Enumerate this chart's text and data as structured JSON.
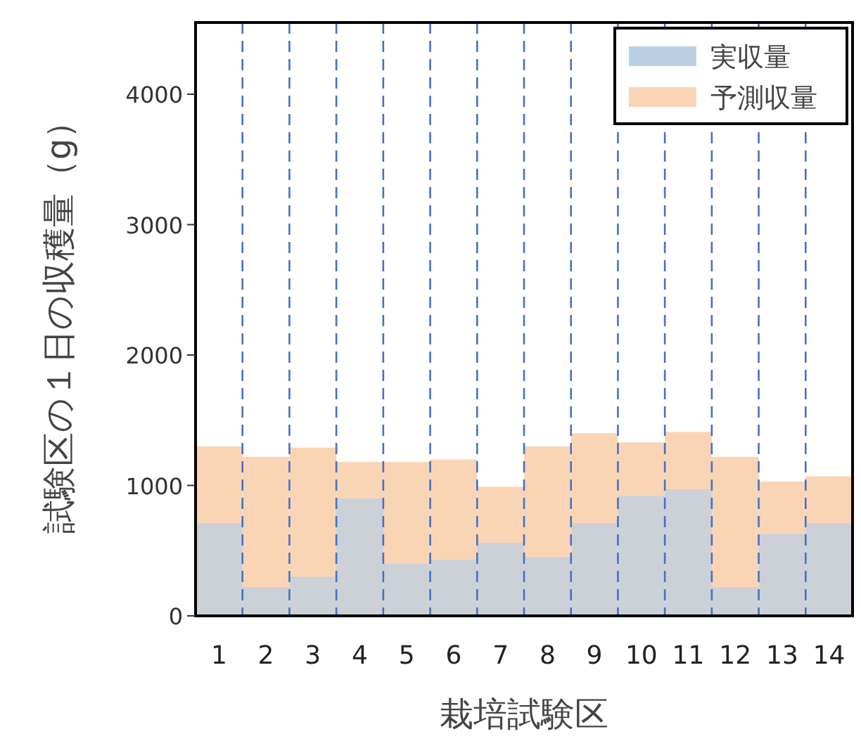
{
  "chart_data": {
    "type": "bar",
    "xlabel": "栽培試験区",
    "ylabel": "試験区の１日の収穫量（g）",
    "x": [
      1,
      2,
      3,
      4,
      5,
      6,
      7,
      8,
      9,
      10,
      11,
      12,
      13,
      14
    ],
    "xlim": [
      0.5,
      14.5
    ],
    "xticks": [
      1,
      2,
      3,
      4,
      5,
      6,
      7,
      8,
      9,
      10,
      11,
      12,
      13,
      14
    ],
    "ylim": [
      0,
      4550
    ],
    "yticks": [
      0,
      1000,
      2000,
      3000,
      4000
    ],
    "grid": false,
    "legend": "top right",
    "series": [
      {
        "name": "実収量",
        "color": "#bad0e4",
        "values": [
          710,
          220,
          300,
          900,
          400,
          430,
          560,
          450,
          710,
          920,
          970,
          220,
          630,
          710
        ]
      },
      {
        "name": "予測収量",
        "color": "#fad5b5",
        "values": [
          1300,
          1220,
          1290,
          1180,
          1180,
          1200,
          990,
          1300,
          1400,
          1330,
          1410,
          1220,
          1030,
          1070
        ]
      }
    ],
    "ref_lines": [
      {
        "axis": "x",
        "value": 1.5,
        "color": "#4472c4",
        "line_style": "dashed"
      },
      {
        "axis": "x",
        "value": 2.5,
        "color": "#4472c4",
        "line_style": "dashed"
      },
      {
        "axis": "x",
        "value": 3.5,
        "color": "#4472c4",
        "line_style": "dashed"
      },
      {
        "axis": "x",
        "value": 4.5,
        "color": "#4472c4",
        "line_style": "dashed"
      },
      {
        "axis": "x",
        "value": 5.5,
        "color": "#4472c4",
        "line_style": "dashed"
      },
      {
        "axis": "x",
        "value": 6.5,
        "color": "#4472c4",
        "line_style": "dashed"
      },
      {
        "axis": "x",
        "value": 7.5,
        "color": "#4472c4",
        "line_style": "dashed"
      },
      {
        "axis": "x",
        "value": 8.5,
        "color": "#4472c4",
        "line_style": "dashed"
      },
      {
        "axis": "x",
        "value": 9.5,
        "color": "#4472c4",
        "line_style": "dashed"
      },
      {
        "axis": "x",
        "value": 10.5,
        "color": "#4472c4",
        "line_style": "dashed"
      },
      {
        "axis": "x",
        "value": 11.5,
        "color": "#4472c4",
        "line_style": "dashed"
      },
      {
        "axis": "x",
        "value": 12.5,
        "color": "#4472c4",
        "line_style": "dashed"
      },
      {
        "axis": "x",
        "value": 13.5,
        "color": "#4472c4",
        "line_style": "dashed"
      }
    ]
  }
}
